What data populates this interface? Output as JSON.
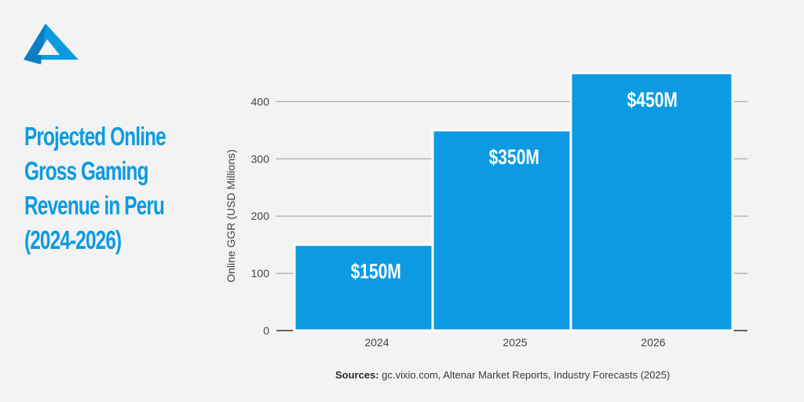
{
  "brand": {
    "logo_icon": "triangle-logo-icon",
    "accent": "#0c9be3"
  },
  "title_lines": [
    "Projected Online",
    "Gross Gaming",
    "Revenue in Peru",
    "(2024-2026)"
  ],
  "sources": {
    "label": "Sources:",
    "text": "gc.vixio.com, Altenar Market Reports, Industry Forecasts (2025)"
  },
  "chart_data": {
    "type": "bar",
    "title": "Projected Online Gross Gaming Revenue in Peru (2024-2026)",
    "categories": [
      "2024",
      "2025",
      "2026"
    ],
    "values": [
      150,
      350,
      450
    ],
    "data_labels": [
      "$150M",
      "$350M",
      "$450M"
    ],
    "ylabel": "Online GGR (USD Millions)",
    "xlabel": "",
    "ylim": [
      0,
      450
    ],
    "yticks": [
      0,
      100,
      200,
      300,
      400
    ],
    "grid": true,
    "legend": "none",
    "bar_color": "#0c9be3",
    "label_color": "#ffffff"
  }
}
